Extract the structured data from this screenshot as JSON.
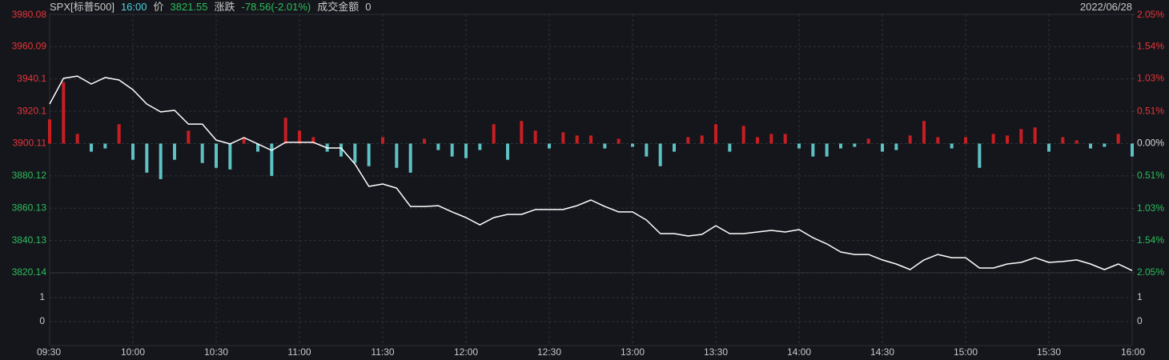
{
  "header": {
    "symbol": "SPX[标普500]",
    "time": "16:00",
    "price_label": "价",
    "price": "3821.55",
    "change_label": "涨跌",
    "change": "-78.56(-2.01%)",
    "amount_label": "成交金额",
    "amount": "0",
    "date": "2022/06/28"
  },
  "chart_data": [
    {
      "type": "line",
      "x": [
        "09:30",
        "09:35",
        "09:40",
        "09:45",
        "09:50",
        "09:55",
        "10:00",
        "10:05",
        "10:10",
        "10:15",
        "10:20",
        "10:25",
        "10:30",
        "10:35",
        "10:40",
        "10:45",
        "10:50",
        "10:55",
        "11:00",
        "11:05",
        "11:10",
        "11:15",
        "11:20",
        "11:25",
        "11:30",
        "11:35",
        "11:40",
        "11:45",
        "11:50",
        "11:55",
        "12:00",
        "12:05",
        "12:10",
        "12:15",
        "12:20",
        "12:25",
        "12:30",
        "12:35",
        "12:40",
        "12:45",
        "12:50",
        "12:55",
        "13:00",
        "13:05",
        "13:10",
        "13:15",
        "13:20",
        "13:25",
        "13:30",
        "13:35",
        "13:40",
        "13:45",
        "13:50",
        "13:55",
        "14:00",
        "14:05",
        "14:10",
        "14:15",
        "14:20",
        "14:25",
        "14:30",
        "14:35",
        "14:40",
        "14:45",
        "14:50",
        "14:55",
        "15:00",
        "15:05",
        "15:10",
        "15:15",
        "15:20",
        "15:25",
        "15:30",
        "15:35",
        "15:40",
        "15:45",
        "15:50",
        "15:55",
        "16:00"
      ],
      "series": [
        {
          "type": "line",
          "color": "#ffffff",
          "values": [
            3924.6,
            3940.5,
            3941.9,
            3937.0,
            3941.0,
            3939.5,
            3933.5,
            3924.6,
            3919.7,
            3920.7,
            3912.2,
            3912.2,
            3902.3,
            3899.9,
            3903.8,
            3899.9,
            3895.9,
            3900.9,
            3900.9,
            3900.9,
            3897.4,
            3897.4,
            3887.5,
            3873.6,
            3875.1,
            3872.6,
            3861.2,
            3861.2,
            3861.7,
            3857.8,
            3854.3,
            3849.8,
            3854.3,
            3856.3,
            3856.3,
            3859.3,
            3859.3,
            3859.3,
            3861.7,
            3865.2,
            3861.2,
            3857.8,
            3857.8,
            3852.8,
            3844.4,
            3844.4,
            3842.9,
            3843.9,
            3849.3,
            3844.4,
            3844.4,
            3845.4,
            3846.4,
            3845.4,
            3846.9,
            3841.9,
            3838.0,
            3833.0,
            3831.5,
            3831.5,
            3828.1,
            3825.6,
            3822.1,
            3828.1,
            3831.5,
            3829.5,
            3829.5,
            3823.1,
            3823.1,
            3825.6,
            3826.6,
            3829.5,
            3826.6,
            3827.1,
            3828.1,
            3825.6,
            3822.1,
            3825.6,
            3821.55
          ]
        },
        {
          "type": "bar",
          "up_color": "#c81e22",
          "down_color": "#5ec2c4",
          "values": [
            15,
            38,
            6,
            -5,
            -3,
            12,
            -10,
            -18,
            -22,
            -10,
            8,
            -12,
            -15,
            -16,
            4,
            -5,
            -20,
            16,
            8,
            4,
            -5,
            -8,
            -12,
            -14,
            4,
            -15,
            -18,
            3,
            -4,
            -8,
            -9,
            -4,
            12,
            -10,
            14,
            8,
            -3,
            7,
            5,
            5,
            -3,
            3,
            -2,
            -8,
            -14,
            -5,
            4,
            5,
            12,
            -5,
            11,
            4,
            6,
            6,
            -3,
            -8,
            -8,
            -3,
            -2,
            3,
            -5,
            -4,
            5,
            14,
            4,
            -3,
            4,
            -15,
            6,
            5,
            9,
            10,
            -5,
            4,
            2,
            -3,
            -2,
            6,
            -8
          ]
        }
      ],
      "xlim": [
        "09:30",
        "16:00"
      ],
      "xticks": [
        "09:30",
        "10:00",
        "10:30",
        "11:00",
        "11:30",
        "12:00",
        "12:30",
        "13:00",
        "13:30",
        "14:00",
        "14:30",
        "15:00",
        "15:30",
        "16:00"
      ],
      "ylim": [
        3820.14,
        3980.08
      ],
      "yticks": [
        3980.08,
        3960.09,
        3940.1,
        3920.1,
        3900.11,
        3880.12,
        3860.13,
        3840.13,
        3820.14
      ],
      "y2lim": [
        -2.05,
        2.05
      ],
      "y2ticks": [
        {
          "value": 2.05,
          "label": "2.05%"
        },
        {
          "value": 1.54,
          "label": "1.54%"
        },
        {
          "value": 1.03,
          "label": "1.03%"
        },
        {
          "value": 0.51,
          "label": "0.51%"
        },
        {
          "value": 0,
          "label": "0.00%"
        },
        {
          "value": -0.51,
          "label": "0.51%"
        },
        {
          "value": -1.03,
          "label": "1.03%"
        },
        {
          "value": -1.54,
          "label": "1.54%"
        },
        {
          "value": -2.05,
          "label": "2.05%"
        }
      ],
      "grid": true,
      "tick_colors": {
        "up": "#e8353a",
        "flat": "#d8d8d8",
        "down": "#2dbd5c"
      }
    },
    {
      "type": "volume",
      "ylim": [
        -1,
        2
      ],
      "yticks": [
        1,
        0
      ],
      "grid": true
    }
  ]
}
